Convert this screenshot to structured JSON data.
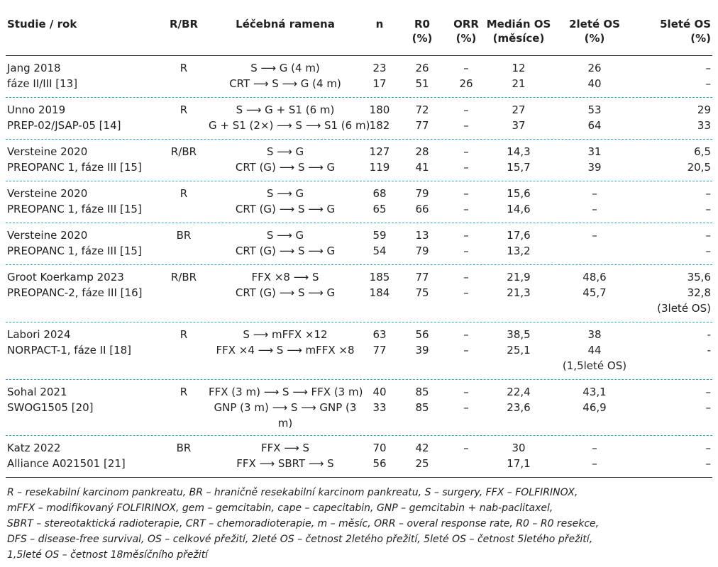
{
  "headers": {
    "study": "Studie / rok",
    "rbr": "R/BR",
    "arms": "Léčebná ramena",
    "n": "n",
    "r0": [
      "R0",
      "(%)"
    ],
    "orr": [
      "ORR",
      "(%)"
    ],
    "median": [
      "Medián OS",
      "(měsíce)"
    ],
    "os2": [
      "2leté OS",
      "(%)"
    ],
    "os5": [
      "5leté OS",
      "(%)"
    ]
  },
  "groups": [
    {
      "study": [
        "Jang 2018",
        "fáze II/III [13]"
      ],
      "rbr": "R",
      "arms": [
        "S ⟶ G (4 m)",
        "CRT ⟶ S ⟶ G (4 m)"
      ],
      "n": [
        "23",
        "17"
      ],
      "r0": [
        "26",
        "51"
      ],
      "orr": [
        "–",
        "26"
      ],
      "median": [
        "12",
        "21"
      ],
      "os2": [
        "26",
        "40"
      ],
      "os5": [
        "–",
        "–"
      ]
    },
    {
      "study": [
        "Unno 2019",
        "PREP-02/JSAP-05 [14]"
      ],
      "rbr": "R",
      "arms": [
        "S ⟶ G + S1 (6 m)",
        "G + S1 (2×) ⟶ S ⟶ S1 (6 m)"
      ],
      "n": [
        "180",
        "182"
      ],
      "r0": [
        "72",
        "77"
      ],
      "orr": [
        "–",
        "–"
      ],
      "median": [
        "27",
        "37"
      ],
      "os2": [
        "53",
        "64"
      ],
      "os5": [
        "29",
        "33"
      ]
    },
    {
      "study": [
        "Versteine 2020",
        "PREOPANC 1, fáze III [15]"
      ],
      "rbr": "R/BR",
      "arms": [
        "S ⟶ G",
        "CRT (G) ⟶ S ⟶ G"
      ],
      "n": [
        "127",
        "119"
      ],
      "r0": [
        "28",
        "41"
      ],
      "orr": [
        "–",
        "–"
      ],
      "median": [
        "14,3",
        "15,7"
      ],
      "os2": [
        "31",
        "39"
      ],
      "os5": [
        "6,5",
        "20,5"
      ]
    },
    {
      "study": [
        "Versteine 2020",
        "PREOPANC 1, fáze III [15]"
      ],
      "rbr": "R",
      "arms": [
        "S ⟶ G",
        "CRT (G) ⟶ S ⟶ G"
      ],
      "n": [
        "68",
        "65"
      ],
      "r0": [
        "79",
        "66"
      ],
      "orr": [
        "–",
        "–"
      ],
      "median": [
        "15,6",
        "14,6"
      ],
      "os2": [
        "–",
        "–"
      ],
      "os5": [
        "–",
        "–"
      ]
    },
    {
      "study": [
        "Versteine 2020",
        "PREOPANC 1, fáze III [15]"
      ],
      "rbr": "BR",
      "arms": [
        "S ⟶ G",
        "CRT (G) ⟶ S ⟶ G"
      ],
      "n": [
        "59",
        "54"
      ],
      "r0": [
        "13",
        "79"
      ],
      "orr": [
        "–",
        "–"
      ],
      "median": [
        "17,6",
        "13,2"
      ],
      "os2": [
        "–",
        ""
      ],
      "os5": [
        "–",
        "–"
      ]
    },
    {
      "study": [
        "Groot Koerkamp 2023",
        "PREOPANC-2, fáze III [16]"
      ],
      "rbr": "R/BR",
      "arms": [
        "FFX ×8 ⟶ S",
        "CRT (G) ⟶ S ⟶ G"
      ],
      "n": [
        "185",
        "184"
      ],
      "r0": [
        "77",
        "75"
      ],
      "orr": [
        "–",
        "–"
      ],
      "median": [
        "21,9",
        "21,3"
      ],
      "os2": [
        "48,6",
        "45,7"
      ],
      "os5": [
        "35,6",
        "32,8",
        "(3leté OS)"
      ]
    },
    {
      "study": [
        "Labori 2024",
        "NORPACT-1, fáze II [18]"
      ],
      "rbr": "R",
      "arms": [
        "S ⟶ mFFX ×12",
        "FFX ×4 ⟶ S ⟶ mFFX ×8"
      ],
      "n": [
        "63",
        "77"
      ],
      "r0": [
        "56",
        "39"
      ],
      "orr": [
        "–",
        "–"
      ],
      "median": [
        "38,5",
        "25,1"
      ],
      "os2": [
        "38",
        "44",
        "(1,5leté OS)"
      ],
      "os5": [
        "-",
        "-"
      ]
    },
    {
      "study": [
        "Sohal 2021",
        "SWOG1505 [20]"
      ],
      "rbr": "R",
      "arms": [
        "FFX (3 m) ⟶ S ⟶ FFX (3 m)",
        "GNP (3 m) ⟶ S ⟶ GNP (3",
        "m)"
      ],
      "n": [
        "40",
        "33"
      ],
      "r0": [
        "85",
        "85"
      ],
      "orr": [
        "–",
        "–"
      ],
      "median": [
        "22,4",
        "23,6"
      ],
      "os2": [
        "43,1",
        "46,9"
      ],
      "os5": [
        "–",
        "–"
      ]
    },
    {
      "study": [
        "Katz 2022",
        "Alliance A021501 [21]"
      ],
      "rbr": "BR",
      "arms": [
        "FFX ⟶ S",
        "FFX ⟶ SBRT ⟶ S"
      ],
      "n": [
        "70",
        "56"
      ],
      "r0": [
        "42",
        "25"
      ],
      "orr": [
        "–",
        ""
      ],
      "median": [
        "30",
        "17,1"
      ],
      "os2": [
        "–",
        "–"
      ],
      "os5": [
        "–",
        "–"
      ]
    }
  ],
  "footnote": [
    "R – resekabilní karcinom pankreatu, BR – hraničně resekabilní karcinom pankreatu, S – surgery, FFX – FOLFIRINOX,",
    "mFFX – modifikovaný FOLFIRINOX, gem – gemcitabin, cape – capecitabin, GNP – gemcitabin + nab-paclitaxel,",
    "SBRT – stereotaktická radioterapie, CRT – chemoradioterapie, m – měsíc, ORR – overal response rate, R0 – R0 resekce,",
    "DFS – disease-free survival, OS – celkové přežití, 2leté OS – četnost 2letého přežití, 5leté OS – četnost 5letého přežití,",
    "1,5leté OS – četnost 18měsíčního přežití"
  ]
}
